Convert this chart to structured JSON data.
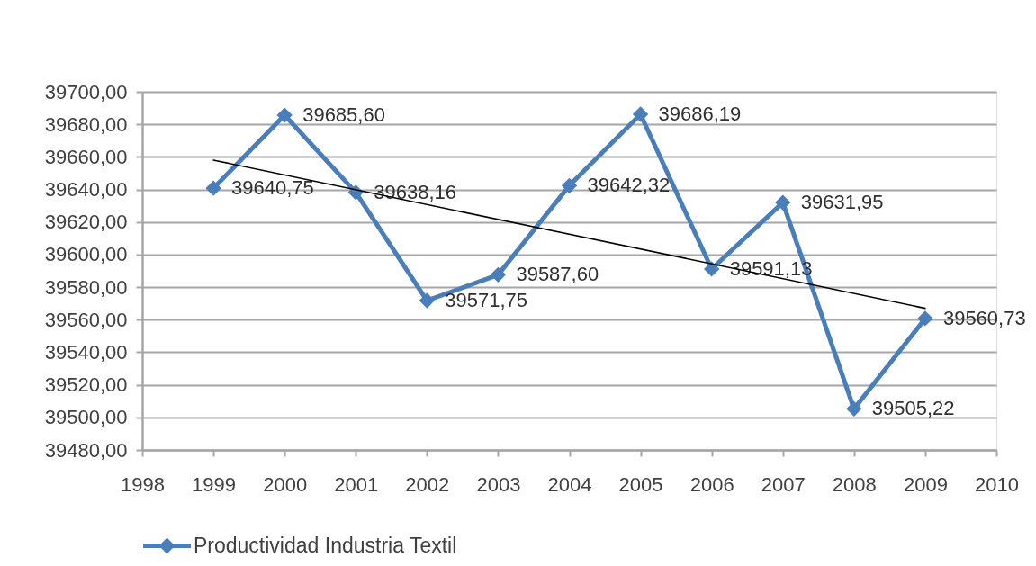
{
  "chart_data": {
    "type": "line",
    "x": [
      1999,
      2000,
      2001,
      2002,
      2003,
      2004,
      2005,
      2006,
      2007,
      2008,
      2009
    ],
    "xlim": [
      1998,
      2010
    ],
    "xticks": [
      1998,
      1999,
      2000,
      2001,
      2002,
      2003,
      2004,
      2005,
      2006,
      2007,
      2008,
      2009,
      2010
    ],
    "ylim": [
      39480,
      39700
    ],
    "yticks": [
      {
        "value": 39480,
        "label": "39480,00"
      },
      {
        "value": 39500,
        "label": "39500,00"
      },
      {
        "value": 39520,
        "label": "39520,00"
      },
      {
        "value": 39540,
        "label": "39540,00"
      },
      {
        "value": 39560,
        "label": "39560,00"
      },
      {
        "value": 39580,
        "label": "39580,00"
      },
      {
        "value": 39600,
        "label": "39600,00"
      },
      {
        "value": 39620,
        "label": "39620,00"
      },
      {
        "value": 39640,
        "label": "39640,00"
      },
      {
        "value": 39660,
        "label": "39660,00"
      },
      {
        "value": 39680,
        "label": "39680,00"
      },
      {
        "value": 39700,
        "label": "39700,00"
      }
    ],
    "grid": "y",
    "legend": "bottom",
    "marker": "diamond",
    "line_style": "solid",
    "series": [
      {
        "name": "Productividad Industria Textil",
        "color": "#4a7ebb",
        "values": [
          39640.75,
          39685.6,
          39638.16,
          39571.75,
          39587.6,
          39642.32,
          39686.19,
          39591.13,
          39631.95,
          39505.22,
          39560.73
        ],
        "value_labels": [
          "39640,75",
          "39685,60",
          "39638,16",
          "39571,75",
          "39587,60",
          "39642,32",
          "39686,19",
          "39591,13",
          "39631,95",
          "39505,22",
          "39560,73"
        ]
      },
      {
        "type": "line",
        "color": "#000000",
        "marker": "none",
        "x": [
          1999,
          2009
        ],
        "values": [
          39658,
          39567
        ]
      }
    ]
  }
}
